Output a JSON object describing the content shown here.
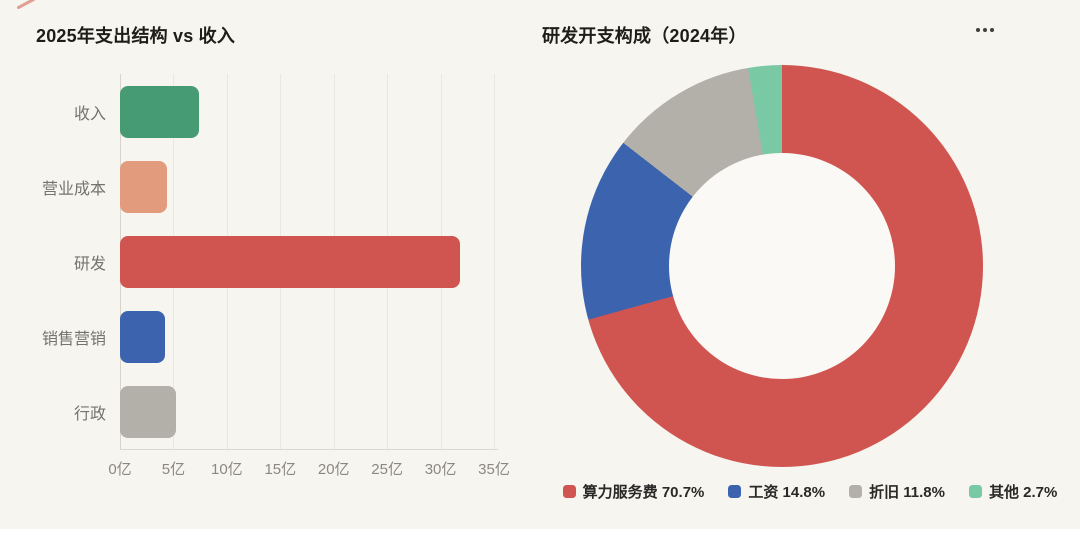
{
  "page": {
    "background_color": "#f7f5ef",
    "accent_red": "#d05550"
  },
  "chart_data": [
    {
      "type": "bar",
      "orientation": "horizontal",
      "title": "2025年支出结构 vs 收入",
      "categories": [
        "收入",
        "营业成本",
        "研发",
        "销售营销",
        "行政"
      ],
      "values": [
        7.4,
        4.4,
        31.8,
        4.2,
        5.2
      ],
      "unit": "亿",
      "colors": [
        "#469a74",
        "#e29b7d",
        "#d05550",
        "#3c64ae",
        "#b3b0aa"
      ],
      "x_ticks": [
        "0亿",
        "5亿",
        "10亿",
        "15亿",
        "20亿",
        "25亿",
        "30亿",
        "35亿"
      ],
      "xlim": [
        0,
        35
      ],
      "grid": "vertical-lines"
    },
    {
      "type": "pie",
      "subtype": "donut",
      "title": "研发开支构成（2024年）",
      "start_angle_deg": 0,
      "direction": "clockwise",
      "hole_ratio": 0.56,
      "slices": [
        {
          "label": "算力服务费",
          "pct": 70.7,
          "color": "#d05550",
          "legend_label": "算力服务费 70.7%"
        },
        {
          "label": "工资",
          "pct": 14.8,
          "color": "#3c64ae",
          "legend_label": "工资 14.8%"
        },
        {
          "label": "折旧",
          "pct": 11.8,
          "color": "#b3b0aa",
          "legend_label": "折旧 11.8%"
        },
        {
          "label": "其他",
          "pct": 2.7,
          "color": "#79c9a4",
          "legend_label": "其他 2.7%"
        }
      ],
      "legend_position": "bottom",
      "menu_icon": "ellipsis-horizontal"
    }
  ]
}
